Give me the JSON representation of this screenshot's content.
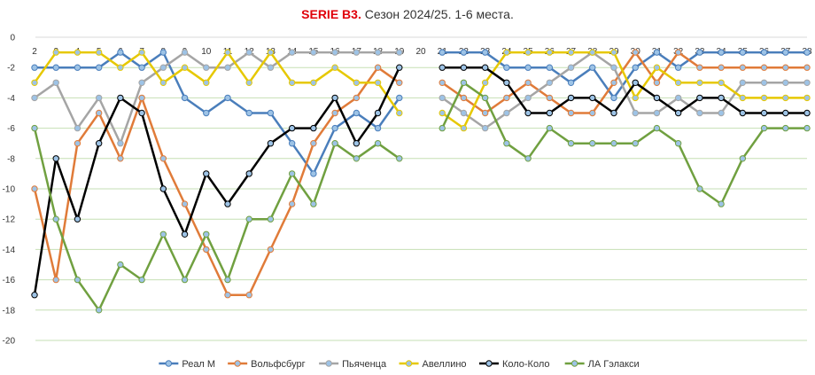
{
  "chart_data": {
    "type": "line",
    "title_bold": "SERIE B3.",
    "title_rest": " Сезон 2024/25. 1-6 места.",
    "x": [
      2,
      3,
      4,
      5,
      6,
      7,
      8,
      9,
      10,
      11,
      12,
      13,
      14,
      15,
      16,
      17,
      18,
      19,
      20,
      21,
      22,
      23,
      24,
      25,
      26,
      27,
      28,
      29,
      30,
      31,
      32,
      33,
      34,
      35,
      36,
      37,
      38
    ],
    "x_tick_labels": [
      "2",
      "3",
      "4",
      "5",
      "6",
      "7",
      "8",
      "9",
      "10",
      "11",
      "12",
      "13",
      "14",
      "15",
      "16",
      "17",
      "18",
      "19",
      "20",
      "21",
      "22",
      "23",
      "24",
      "25",
      "26",
      "27",
      "28",
      "29",
      "30",
      "31",
      "32",
      "33",
      "34",
      "35",
      "36",
      "37",
      "38"
    ],
    "ylim": [
      -20,
      0
    ],
    "y_ticks": [
      0,
      -2,
      -4,
      -6,
      -8,
      -10,
      -12,
      -14,
      -16,
      -18,
      -20
    ],
    "grid": true,
    "legend_position": "bottom",
    "series": [
      {
        "name": "Реал М",
        "color": "#4a7ebb",
        "values": [
          -2,
          -2,
          -2,
          -2,
          -1,
          -2,
          -1,
          -4,
          -5,
          -4,
          -5,
          -5,
          -7,
          -9,
          -6,
          -5,
          -6,
          -4,
          null,
          -1,
          -1,
          -1,
          -2,
          -2,
          -2,
          -3,
          -2,
          -4,
          -2,
          -1,
          -2,
          -1,
          -1,
          -1,
          -1,
          -1,
          -1
        ]
      },
      {
        "name": "Вольфсбург",
        "color": "#e07b39",
        "values": [
          -10,
          -16,
          -7,
          -5,
          -8,
          -4,
          -8,
          -11,
          -14,
          -17,
          -17,
          -14,
          -11,
          -7,
          -5,
          -4,
          -2,
          -3,
          null,
          -3,
          -4,
          -5,
          -4,
          -3,
          -4,
          -5,
          -5,
          -3,
          -1,
          -3,
          -1,
          -2,
          -2,
          -2,
          -2,
          -2,
          -2
        ]
      },
      {
        "name": "Пьяченца",
        "color": "#a5a5a5",
        "values": [
          -4,
          -3,
          -6,
          -4,
          -7,
          -3,
          -2,
          -1,
          -2,
          -2,
          -1,
          -2,
          -1,
          -1,
          -1,
          -1,
          -1,
          -1,
          null,
          -4,
          -5,
          -6,
          -5,
          -4,
          -3,
          -2,
          -1,
          -2,
          -5,
          -5,
          -4,
          -5,
          -5,
          -3,
          -3,
          -3,
          -3
        ]
      },
      {
        "name": "Авеллино",
        "color": "#e6c800",
        "values": [
          -3,
          -1,
          -1,
          -1,
          -2,
          -1,
          -3,
          -2,
          -3,
          -1,
          -3,
          -1,
          -3,
          -3,
          -2,
          -3,
          -3,
          -5,
          null,
          -5,
          -6,
          -3,
          -1,
          -1,
          -1,
          -1,
          -1,
          -1,
          -4,
          -2,
          -3,
          -3,
          -3,
          -4,
          -4,
          -4,
          -4
        ]
      },
      {
        "name": "Коло-Коло",
        "color": "#000000",
        "values": [
          -17,
          -8,
          -12,
          -7,
          -4,
          -5,
          -10,
          -13,
          -9,
          -11,
          -9,
          -7,
          -6,
          -6,
          -4,
          -7,
          -5,
          -2,
          null,
          -2,
          -2,
          -2,
          -3,
          -5,
          -5,
          -4,
          -4,
          -5,
          -3,
          -4,
          -5,
          -4,
          -4,
          -5,
          -5,
          -5,
          -5
        ]
      },
      {
        "name": "ЛА Гэлакси",
        "color": "#70a040",
        "values": [
          -6,
          -12,
          -16,
          -18,
          -15,
          -16,
          -13,
          -16,
          -13,
          -16,
          -12,
          -12,
          -9,
          -11,
          -7,
          -8,
          -7,
          -8,
          null,
          -6,
          -3,
          -4,
          -7,
          -8,
          -6,
          -7,
          -7,
          -7,
          -7,
          -6,
          -7,
          -10,
          -11,
          -8,
          -6,
          -6,
          -6
        ]
      }
    ]
  }
}
